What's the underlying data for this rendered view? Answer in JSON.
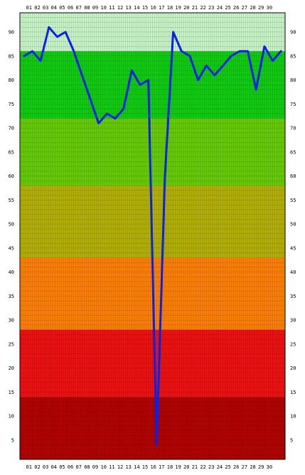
{
  "chart_data": {
    "type": "line",
    "title": "",
    "xlabel": "",
    "ylabel": "",
    "x": [
      "01",
      "02",
      "03",
      "04",
      "05",
      "06",
      "07",
      "08",
      "09",
      "10",
      "11",
      "12",
      "13",
      "14",
      "15",
      "16",
      "17",
      "18",
      "19",
      "20",
      "21",
      "22",
      "23",
      "24",
      "25",
      "26",
      "27",
      "28",
      "29",
      "30"
    ],
    "series": [
      {
        "points": [
          [
            0.5,
            85
          ],
          [
            1.5,
            86
          ],
          [
            2.5,
            84
          ],
          [
            3.5,
            91
          ],
          [
            4.5,
            89
          ],
          [
            5.5,
            90
          ],
          [
            6.5,
            86
          ],
          [
            7.5,
            81
          ],
          [
            8.5,
            76
          ],
          [
            9.5,
            71
          ],
          [
            10.5,
            73
          ],
          [
            11.5,
            72
          ],
          [
            12.5,
            74
          ],
          [
            13.5,
            82
          ],
          [
            14.5,
            79
          ],
          [
            15.5,
            80
          ],
          [
            16.5,
            4
          ],
          [
            17.5,
            60
          ],
          [
            18.5,
            90
          ],
          [
            19.5,
            86
          ],
          [
            20.5,
            85
          ],
          [
            21.5,
            80
          ],
          [
            22.5,
            83
          ],
          [
            23.5,
            81
          ],
          [
            24.5,
            83
          ],
          [
            25.5,
            85
          ],
          [
            26.5,
            86
          ],
          [
            27.5,
            86
          ],
          [
            28.5,
            78
          ],
          [
            29.5,
            87
          ],
          [
            30.5,
            84
          ],
          [
            31.5,
            86
          ]
        ]
      }
    ],
    "xlim": [
      0,
      32
    ],
    "ylim": [
      1,
      94
    ],
    "y_ticks": [
      5,
      10,
      15,
      20,
      25,
      30,
      35,
      40,
      45,
      50,
      55,
      60,
      65,
      70,
      75,
      80,
      85,
      90
    ],
    "bands": [
      {
        "from": 86,
        "to": 94,
        "color": "#c8f5c8"
      },
      {
        "from": 72,
        "to": 86,
        "color": "#10cc10"
      },
      {
        "from": 58,
        "to": 72,
        "color": "#66cc00"
      },
      {
        "from": 43,
        "to": 58,
        "color": "#b4b000"
      },
      {
        "from": 28,
        "to": 43,
        "color": "#ff8000"
      },
      {
        "from": 14,
        "to": 28,
        "color": "#ee1111"
      },
      {
        "from": 1,
        "to": 14,
        "color": "#b30000"
      }
    ],
    "line_color": "#0a22e6",
    "grid": true,
    "legend": "none"
  }
}
